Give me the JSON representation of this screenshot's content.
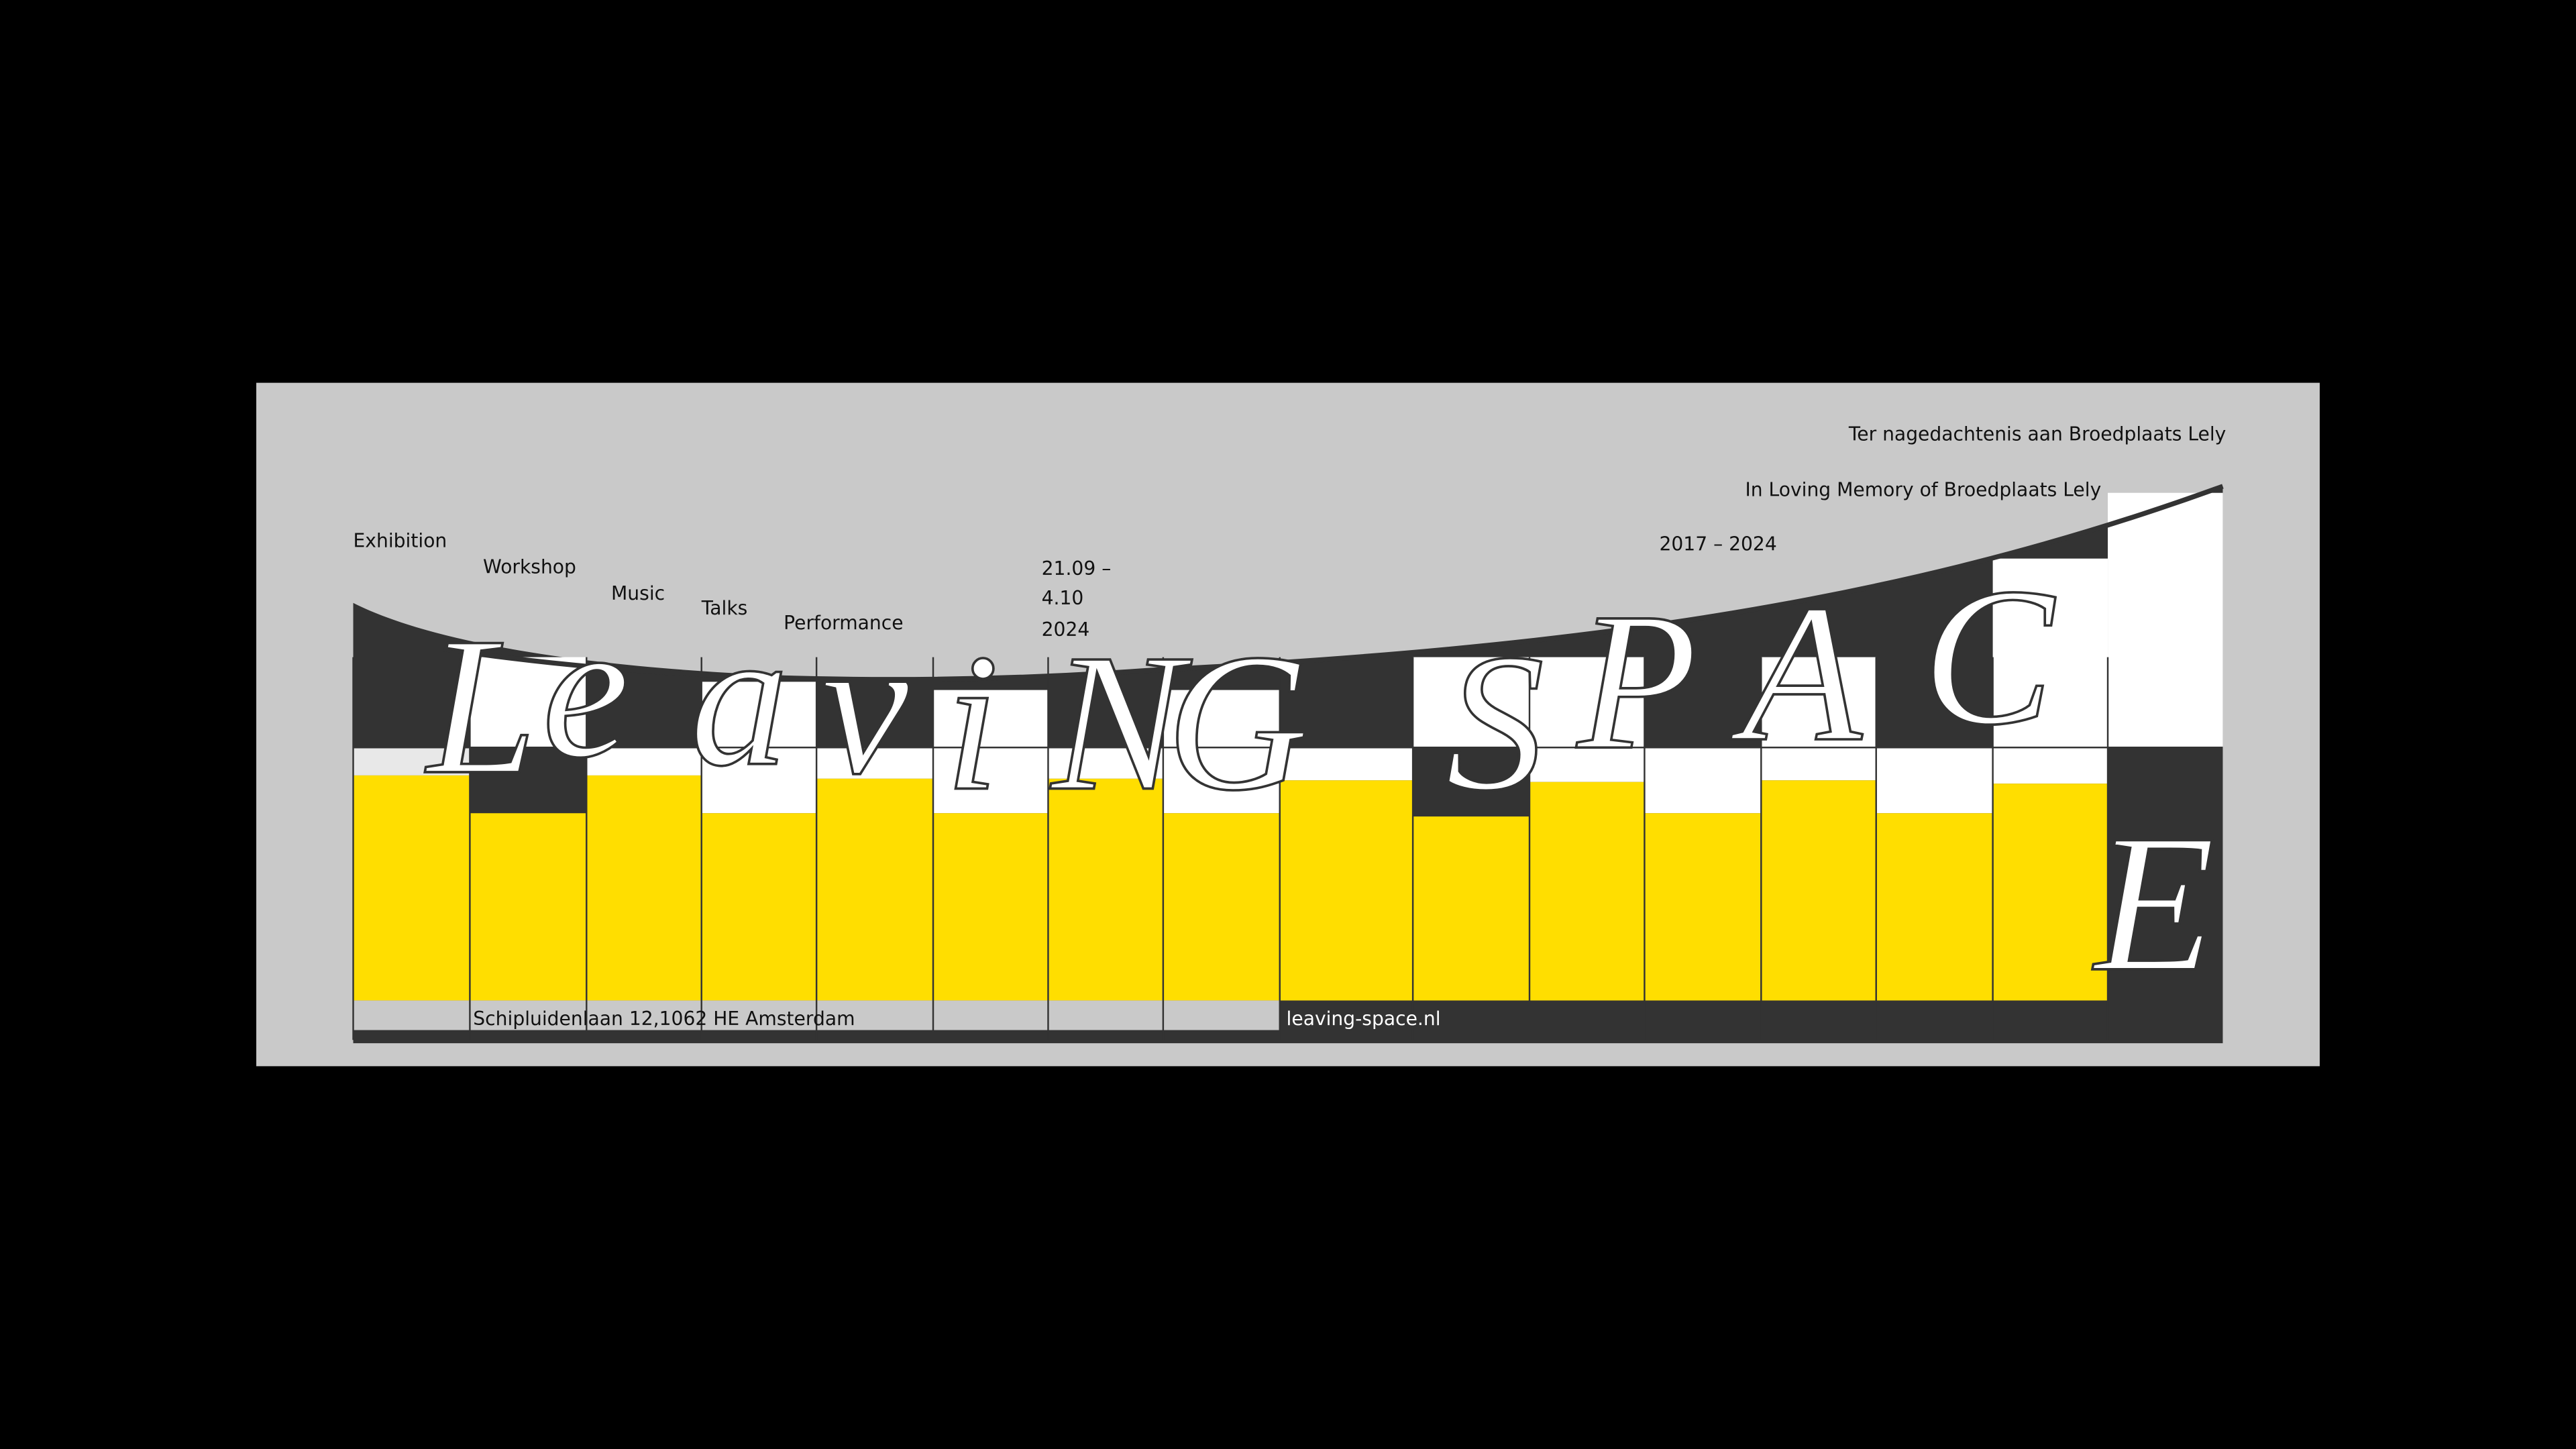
{
  "header": {
    "dedication_nl": "Ter nagedachtenis aan Broedplaats Lely",
    "dedication_en": "In Loving Memory of Broedplaats Lely"
  },
  "program": [
    "Exhibition",
    "Workshop",
    "Music",
    "Talks",
    "Performance"
  ],
  "dates": [
    "21.09 –",
    "4.10",
    "2024"
  ],
  "years": "2017 – 2024",
  "letters": [
    "L",
    "e",
    "a",
    "v",
    "i",
    "N",
    "G",
    "S",
    "P",
    "A",
    "C",
    "E"
  ],
  "footer": {
    "address": "Schipluidenlaan 12,1062 HE Amsterdam",
    "url": "leaving-space.nl"
  }
}
